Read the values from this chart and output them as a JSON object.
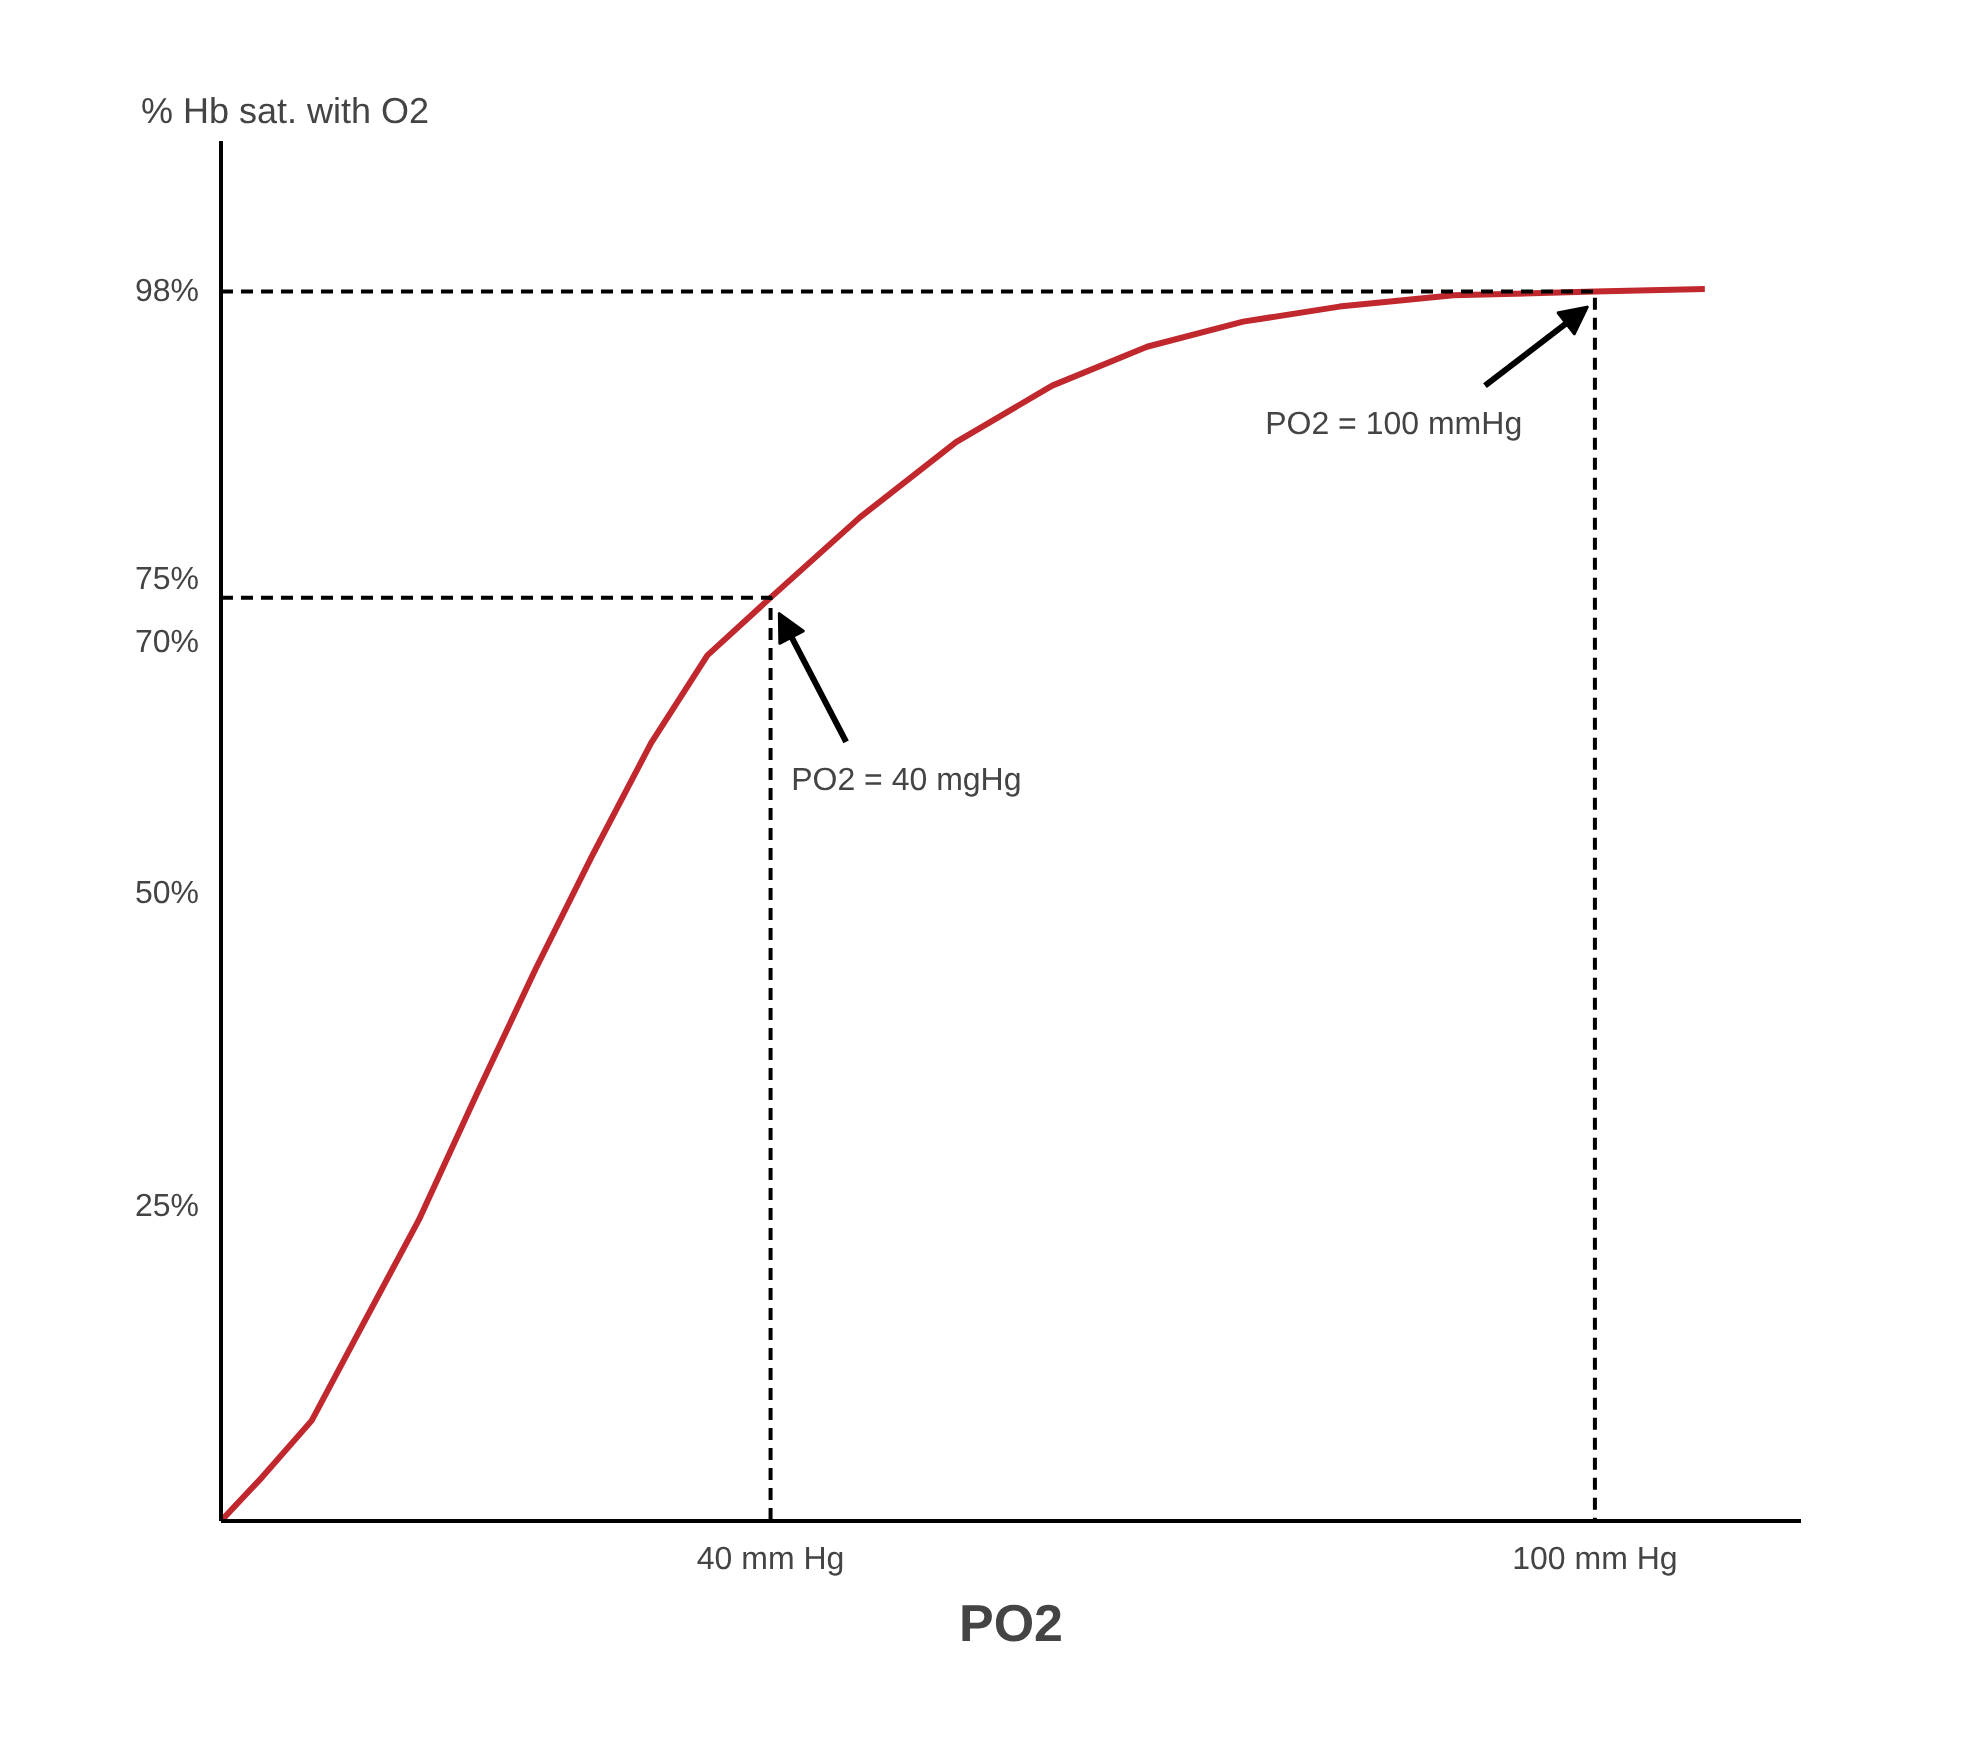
{
  "chart_data": {
    "type": "line",
    "xlabel": "PO2",
    "ylabel": "% Hb sat. with O2",
    "xlim": [
      0,
      115
    ],
    "ylim": [
      0,
      110
    ],
    "xticks": [
      {
        "value": 40,
        "label": "40 mm Hg"
      },
      {
        "value": 100,
        "label": "100 mm Hg"
      }
    ],
    "yticks": [
      {
        "value": 25,
        "label": "25%"
      },
      {
        "value": 50,
        "label": "50%"
      },
      {
        "value": 70,
        "label": "70%"
      },
      {
        "value": 75,
        "label": "75%"
      },
      {
        "value": 98,
        "label": "98%"
      }
    ],
    "grid": false,
    "marker": "none",
    "series": [
      {
        "color": "#c0282d",
        "line_style": "solid",
        "x": [
          0,
          3,
          6.6,
          10,
          14.4,
          18.6,
          22.9,
          27,
          31.3,
          35.4,
          40,
          46.5,
          53.5,
          60.5,
          67.4,
          74.4,
          81.4,
          89.7,
          100,
          108
        ],
        "values": [
          0,
          3.5,
          8,
          15,
          24,
          34,
          44,
          53,
          62,
          69,
          73.6,
          80,
          86,
          90.5,
          93.6,
          95.6,
          96.8,
          97.7,
          98,
          98.2
        ]
      },
      {
        "color": "#000000",
        "line_style": "dashed",
        "x": [
          0,
          40,
          40
        ],
        "values": [
          73.6,
          73.6,
          0
        ]
      },
      {
        "color": "#000000",
        "line_style": "dashed",
        "x": [
          0,
          100,
          100
        ],
        "values": [
          98,
          98,
          0
        ]
      }
    ],
    "annotations": [
      {
        "text": "PO2 = 40 mgHg",
        "x": 40,
        "y": 73.6
      },
      {
        "text": "PO2 = 100 mmHg",
        "x": 100,
        "y": 98
      }
    ]
  }
}
